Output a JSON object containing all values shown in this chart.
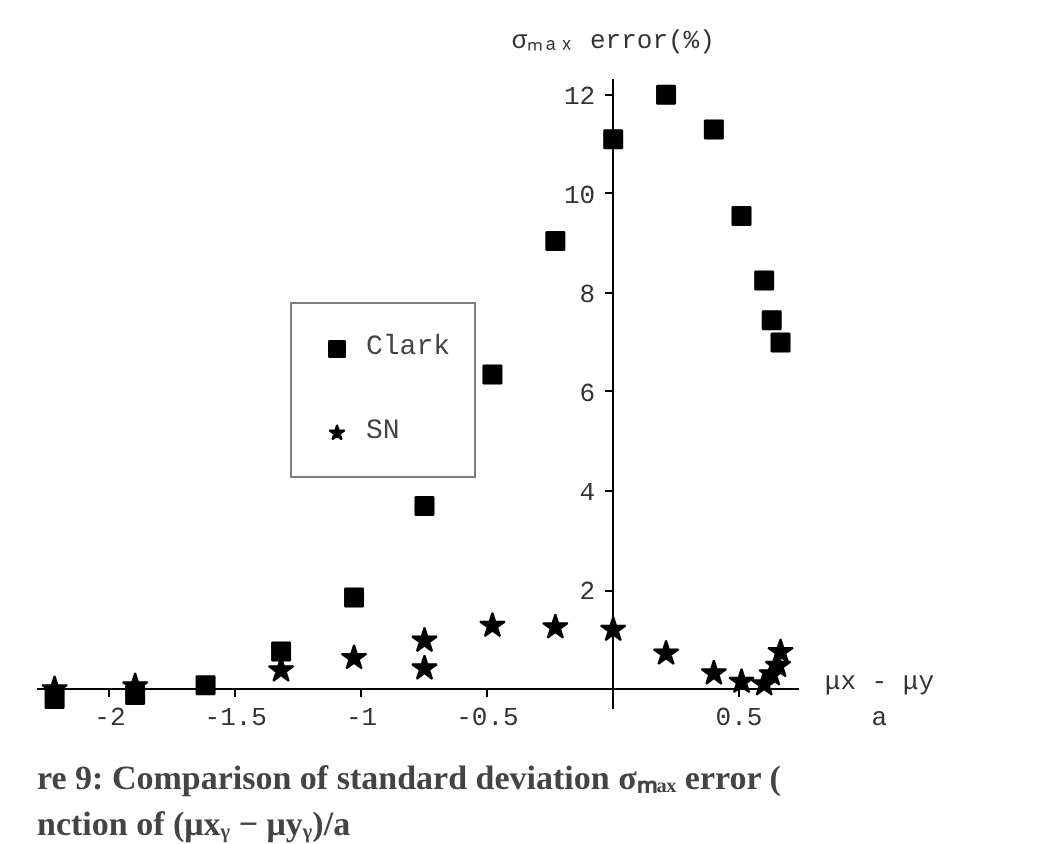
{
  "chart_data": {
    "type": "scatter",
    "xlabel": "μx - μy\na",
    "ylabel": "σₘₐₓ error(%)",
    "annotations": [
      "re 9: Comparison of standard deviation σₘₐₓ error (",
      "nction of (μxᵧ − μyᵧ)/a"
    ],
    "series": [
      {
        "name": "Clark",
        "color": "#000000",
        "marker": "square",
        "x": [
          -2.22,
          -1.9,
          -1.62,
          -1.32,
          -1.03,
          -0.75,
          -0.48,
          -0.23,
          0.0,
          0.21,
          0.4,
          0.51,
          0.6,
          0.63,
          0.655,
          0.665
        ],
        "values": [
          -0.2,
          -0.12,
          0.08,
          0.76,
          1.85,
          3.7,
          6.35,
          9.05,
          11.1,
          12.0,
          11.3,
          9.55,
          8.25,
          7.45,
          null,
          7.0
        ]
      },
      {
        "name": "SN",
        "color": "#000000",
        "marker": "star",
        "x": [
          -2.22,
          -1.9,
          -1.32,
          -1.03,
          -0.75,
          -0.75,
          -0.48,
          -0.23,
          0.0,
          0.21,
          0.4,
          0.51,
          0.6,
          0.63,
          0.655,
          0.665
        ],
        "values": [
          0.0,
          0.06,
          0.38,
          0.63,
          0.42,
          0.98,
          1.28,
          1.25,
          1.2,
          0.72,
          0.32,
          0.15,
          0.1,
          0.3,
          0.47,
          0.75
        ]
      }
    ],
    "xlim": [
      -2.29,
      0.74
    ],
    "ylim": [
      -0.4,
      12.3
    ],
    "xticks": [
      -2,
      -1.5,
      -1,
      -0.5,
      0.5
    ],
    "yticks": [
      2,
      4,
      6,
      8,
      10,
      12
    ],
    "grid": false,
    "legend": "top left"
  }
}
